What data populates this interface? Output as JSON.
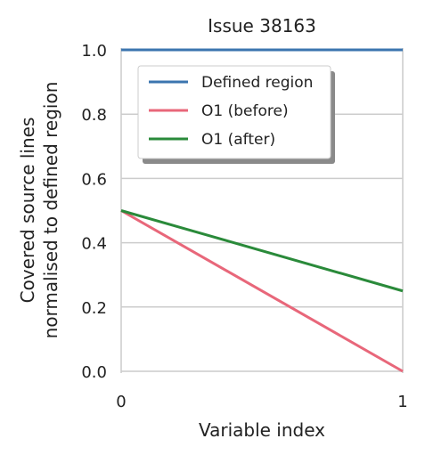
{
  "chart_data": {
    "type": "line",
    "title": "Issue 38163",
    "xlabel": "Variable index",
    "ylabel": [
      "Covered source lines",
      "normalised to defined region"
    ],
    "x": [
      0,
      1
    ],
    "xlim": [
      0,
      1
    ],
    "ylim": [
      0,
      1
    ],
    "x_ticks": [
      "0",
      "1"
    ],
    "y_ticks": [
      "0.0",
      "0.2",
      "0.4",
      "0.6",
      "0.8",
      "1.0"
    ],
    "grid": "horizontal",
    "legend_position": "top-left",
    "series": [
      {
        "name": "Defined region",
        "values": [
          1.0,
          1.0
        ],
        "color": "#3b75af"
      },
      {
        "name": "O1 (before)",
        "values": [
          0.5,
          0.0
        ],
        "color": "#e8677a"
      },
      {
        "name": "O1 (after)",
        "values": [
          0.5,
          0.25
        ],
        "color": "#2a8a3a"
      }
    ]
  }
}
